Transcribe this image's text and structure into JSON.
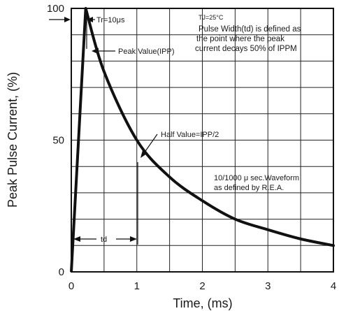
{
  "chart_data": {
    "type": "line",
    "title": "",
    "xlabel": "Time, (ms)",
    "ylabel": "Peak Pulse Current, (%)",
    "xlim": [
      0,
      4
    ],
    "ylim": [
      0,
      100
    ],
    "grid": true,
    "x_ticks": [
      "0",
      "1",
      "2",
      "3",
      "4"
    ],
    "y_ticks": [
      "0",
      "50",
      "100"
    ],
    "series": [
      {
        "values_x": [
          0,
          0.22,
          0.5,
          1.0,
          1.5,
          2.0,
          2.5,
          3.0,
          3.5,
          4.0
        ],
        "values_y": [
          0,
          100,
          76,
          50,
          36,
          27,
          20,
          16,
          12.5,
          10
        ]
      }
    ],
    "annotations": {
      "tr": "Tr=10μs",
      "tj": "TJ=25°C",
      "pulse_width_lines": [
        "Pulse Width(td) is defined as",
        "the point where the peak",
        "current decays 50% of IPPM"
      ],
      "peak_value": "Peak Value(IPP)",
      "half_value": "Half Value=IPP/2",
      "waveform_lines": [
        "10/1000 μ sec.Waveform",
        "as defined by R.E.A."
      ],
      "td": "td"
    }
  }
}
